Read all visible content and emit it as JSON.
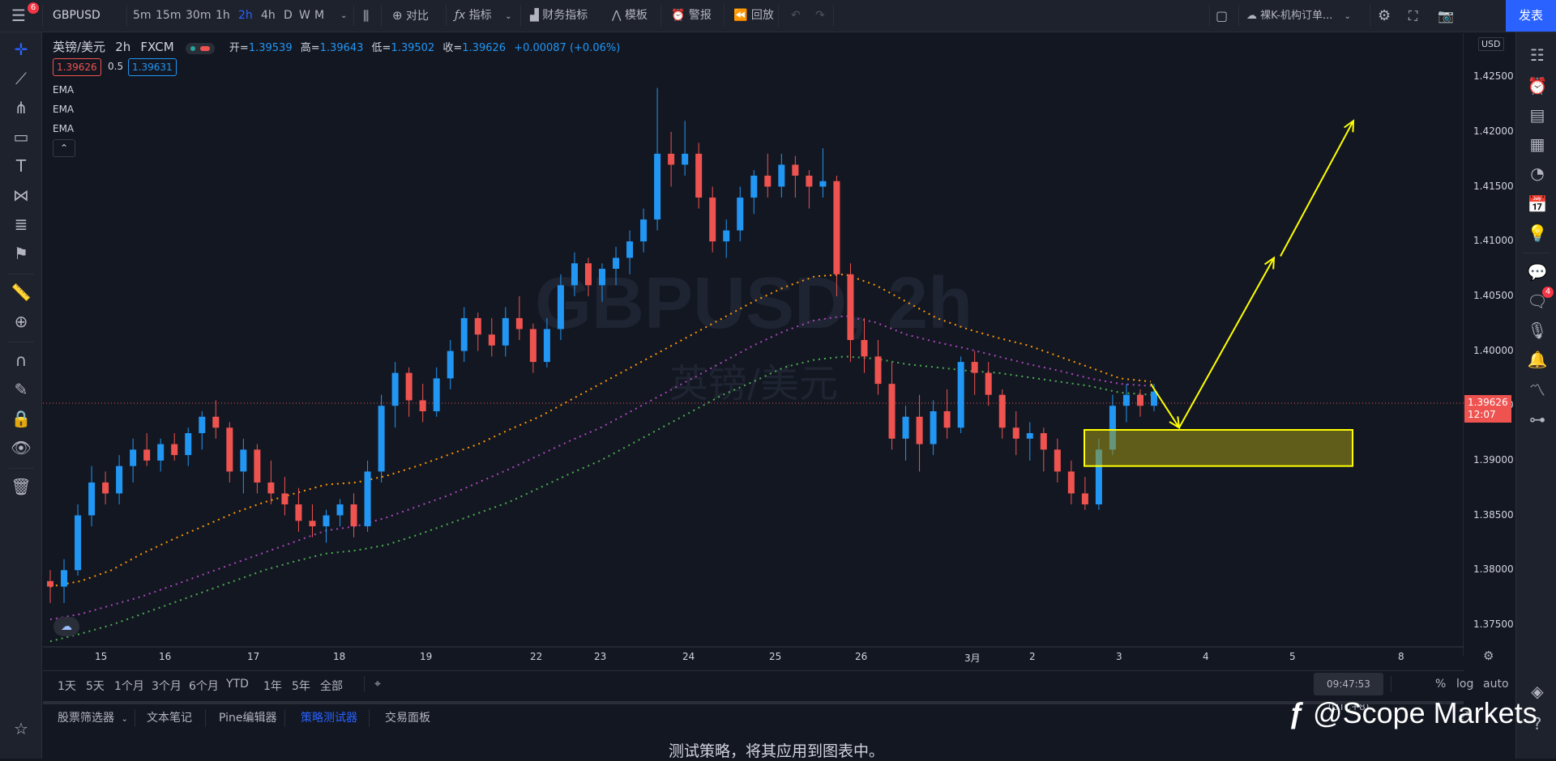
{
  "topbar": {
    "badge": "6",
    "symbol": "GBPUSD",
    "intervals": [
      "5m",
      "15m",
      "30m",
      "1h",
      "2h",
      "4h",
      "D",
      "W",
      "M"
    ],
    "active_interval": "2h",
    "compare": "对比",
    "indicators": "指标",
    "financials": "财务指标",
    "templates": "模板",
    "alert": "警报",
    "replay": "回放",
    "layout_name": "裸K-机构订单...",
    "publish": "发表"
  },
  "legend": {
    "title": "英镑/美元",
    "interval": "2h",
    "source": "FXCM",
    "open_label": "开=",
    "open": "1.39539",
    "high_label": "高=",
    "high": "1.39643",
    "low_label": "低=",
    "low": "1.39502",
    "close_label": "收=",
    "close": "1.39626",
    "change": "+0.00087 (+0.06%)",
    "bid": "1.39626",
    "spread": "0.5",
    "ask": "1.39631",
    "ema_labels": [
      "EMA",
      "EMA",
      "EMA"
    ]
  },
  "watermark": {
    "symbol_line": "GBPUSD, 2h",
    "name_line": "英镑/美元"
  },
  "axis": {
    "currency": "USD",
    "price_ticks": [
      "1.42500",
      "1.42000",
      "1.41500",
      "1.41000",
      "1.40500",
      "1.40000",
      "1.39500",
      "1.39000",
      "1.38500",
      "1.38000",
      "1.37500"
    ],
    "current_price": "1.39626",
    "countdown": "12:07",
    "time_ticks": [
      "15",
      "16",
      "17",
      "18",
      "19",
      "22",
      "23",
      "24",
      "25",
      "26",
      "3月",
      "2",
      "3",
      "4",
      "5",
      "8"
    ]
  },
  "period_bar": {
    "ranges": [
      "1天",
      "5天",
      "1个月",
      "3个月",
      "6个月",
      "YTD",
      "1年",
      "5年",
      "全部"
    ],
    "clock": "09:47:53 (UTC+8)",
    "percent": "%",
    "log": "log",
    "auto": "auto"
  },
  "panel": {
    "tabs": [
      "股票筛选器",
      "文本笔记",
      "Pine编辑器",
      "策略测试器",
      "交易面板"
    ],
    "active_tab": "策略测试器",
    "message": "测试策略，将其应用到图表中。"
  },
  "right_badge": "4",
  "brand": "@Scope Markets",
  "colors": {
    "up": "#2196f3",
    "down": "#ef5350",
    "ema_orange": "#ff9800",
    "ema_purple": "#ab47bc",
    "ema_green": "#4caf50",
    "annotation": "#ffff00"
  },
  "chart_data": {
    "type": "candlestick",
    "ylim": [
      1.373,
      1.429
    ],
    "ohlc": [
      [
        1.379,
        1.38,
        1.377,
        1.3785
      ],
      [
        1.3785,
        1.381,
        1.377,
        1.38
      ],
      [
        1.38,
        1.386,
        1.3795,
        1.385
      ],
      [
        1.385,
        1.3895,
        1.384,
        1.388
      ],
      [
        1.388,
        1.389,
        1.386,
        1.387
      ],
      [
        1.387,
        1.3905,
        1.386,
        1.3895
      ],
      [
        1.3895,
        1.392,
        1.388,
        1.391
      ],
      [
        1.391,
        1.3925,
        1.3895,
        1.39
      ],
      [
        1.39,
        1.392,
        1.389,
        1.3915
      ],
      [
        1.3915,
        1.3925,
        1.39,
        1.3905
      ],
      [
        1.3905,
        1.393,
        1.3895,
        1.3925
      ],
      [
        1.3925,
        1.3945,
        1.391,
        1.394
      ],
      [
        1.394,
        1.3955,
        1.392,
        1.393
      ],
      [
        1.393,
        1.3935,
        1.388,
        1.389
      ],
      [
        1.389,
        1.392,
        1.387,
        1.391
      ],
      [
        1.391,
        1.3915,
        1.387,
        1.388
      ],
      [
        1.388,
        1.39,
        1.386,
        1.387
      ],
      [
        1.387,
        1.3885,
        1.385,
        1.386
      ],
      [
        1.386,
        1.3875,
        1.3835,
        1.3845
      ],
      [
        1.3845,
        1.386,
        1.383,
        1.384
      ],
      [
        1.384,
        1.3855,
        1.3825,
        1.385
      ],
      [
        1.385,
        1.3865,
        1.384,
        1.386
      ],
      [
        1.386,
        1.387,
        1.383,
        1.384
      ],
      [
        1.384,
        1.39,
        1.3835,
        1.389
      ],
      [
        1.389,
        1.396,
        1.388,
        1.395
      ],
      [
        1.395,
        1.399,
        1.393,
        1.398
      ],
      [
        1.398,
        1.3985,
        1.394,
        1.3955
      ],
      [
        1.3955,
        1.397,
        1.3935,
        1.3945
      ],
      [
        1.3945,
        1.3985,
        1.394,
        1.3975
      ],
      [
        1.3975,
        1.401,
        1.3965,
        1.4
      ],
      [
        1.4,
        1.404,
        1.399,
        1.403
      ],
      [
        1.403,
        1.4035,
        1.4,
        1.4015
      ],
      [
        1.4015,
        1.403,
        1.3995,
        1.4005
      ],
      [
        1.4005,
        1.404,
        1.3995,
        1.403
      ],
      [
        1.403,
        1.405,
        1.401,
        1.402
      ],
      [
        1.402,
        1.4025,
        1.398,
        1.399
      ],
      [
        1.399,
        1.403,
        1.3985,
        1.402
      ],
      [
        1.402,
        1.407,
        1.401,
        1.406
      ],
      [
        1.406,
        1.409,
        1.405,
        1.408
      ],
      [
        1.408,
        1.4085,
        1.405,
        1.406
      ],
      [
        1.406,
        1.408,
        1.4045,
        1.4075
      ],
      [
        1.4075,
        1.4095,
        1.406,
        1.4085
      ],
      [
        1.4085,
        1.411,
        1.407,
        1.41
      ],
      [
        1.41,
        1.413,
        1.409,
        1.412
      ],
      [
        1.412,
        1.424,
        1.411,
        1.418
      ],
      [
        1.418,
        1.42,
        1.415,
        1.417
      ],
      [
        1.417,
        1.421,
        1.416,
        1.418
      ],
      [
        1.418,
        1.419,
        1.413,
        1.414
      ],
      [
        1.414,
        1.415,
        1.409,
        1.41
      ],
      [
        1.41,
        1.412,
        1.4085,
        1.411
      ],
      [
        1.411,
        1.415,
        1.41,
        1.414
      ],
      [
        1.414,
        1.4165,
        1.4125,
        1.416
      ],
      [
        1.416,
        1.418,
        1.414,
        1.415
      ],
      [
        1.415,
        1.418,
        1.414,
        1.417
      ],
      [
        1.417,
        1.4178,
        1.414,
        1.416
      ],
      [
        1.416,
        1.4165,
        1.413,
        1.415
      ],
      [
        1.415,
        1.4185,
        1.414,
        1.4155
      ],
      [
        1.4155,
        1.416,
        1.405,
        1.407
      ],
      [
        1.407,
        1.408,
        1.399,
        1.401
      ],
      [
        1.401,
        1.403,
        1.398,
        1.3995
      ],
      [
        1.3995,
        1.401,
        1.396,
        1.397
      ],
      [
        1.397,
        1.399,
        1.391,
        1.392
      ],
      [
        1.392,
        1.395,
        1.39,
        1.394
      ],
      [
        1.394,
        1.396,
        1.389,
        1.3915
      ],
      [
        1.3915,
        1.3955,
        1.3905,
        1.3945
      ],
      [
        1.3945,
        1.3965,
        1.392,
        1.393
      ],
      [
        1.393,
        1.3995,
        1.3925,
        1.399
      ],
      [
        1.399,
        1.4,
        1.396,
        1.398
      ],
      [
        1.398,
        1.399,
        1.395,
        1.396
      ],
      [
        1.396,
        1.3965,
        1.392,
        1.393
      ],
      [
        1.393,
        1.3945,
        1.3905,
        1.392
      ],
      [
        1.392,
        1.3935,
        1.39,
        1.3925
      ],
      [
        1.3925,
        1.393,
        1.389,
        1.391
      ],
      [
        1.391,
        1.392,
        1.388,
        1.389
      ],
      [
        1.389,
        1.39,
        1.386,
        1.387
      ],
      [
        1.387,
        1.3885,
        1.3855,
        1.386
      ],
      [
        1.386,
        1.392,
        1.3855,
        1.391
      ],
      [
        1.391,
        1.396,
        1.3905,
        1.395
      ],
      [
        1.395,
        1.397,
        1.3935,
        1.396
      ],
      [
        1.396,
        1.3965,
        1.394,
        1.395
      ],
      [
        1.395,
        1.397,
        1.3945,
        1.3963
      ]
    ],
    "ema_orange": [
      1.3785,
      1.379,
      1.38,
      1.3815,
      1.3828,
      1.384,
      1.3852,
      1.3862,
      1.387,
      1.3878,
      1.388,
      1.3886,
      1.3895,
      1.3905,
      1.3915,
      1.3928,
      1.394,
      1.3955,
      1.397,
      1.3985,
      1.4,
      1.4015,
      1.403,
      1.4045,
      1.4058,
      1.4068,
      1.407,
      1.406,
      1.4045,
      1.403,
      1.402,
      1.4012,
      1.4005,
      1.3995,
      1.3985,
      1.3975,
      1.3972
    ],
    "ema_purple": [
      1.3755,
      1.376,
      1.3768,
      1.3776,
      1.3786,
      1.3796,
      1.3806,
      1.3816,
      1.3826,
      1.3836,
      1.384,
      1.3848,
      1.3858,
      1.3868,
      1.388,
      1.3892,
      1.3905,
      1.3918,
      1.393,
      1.3945,
      1.396,
      1.3975,
      1.399,
      1.4005,
      1.4018,
      1.4028,
      1.4032,
      1.4026,
      1.4015,
      1.4008,
      1.4002,
      1.3995,
      1.3988,
      1.3982,
      1.3975,
      1.397,
      1.3968
    ],
    "ema_green": [
      1.3735,
      1.3742,
      1.375,
      1.376,
      1.377,
      1.378,
      1.379,
      1.38,
      1.3808,
      1.3815,
      1.3818,
      1.3823,
      1.3832,
      1.3842,
      1.3852,
      1.3862,
      1.3875,
      1.3888,
      1.39,
      1.3915,
      1.393,
      1.3945,
      1.396,
      1.3972,
      1.3985,
      1.3992,
      1.3995,
      1.3993,
      1.3988,
      1.3985,
      1.3982,
      1.398,
      1.3976,
      1.3972,
      1.3968,
      1.3962,
      1.396
    ],
    "zone": [
      1.3928,
      1.3895
    ],
    "arrow_path": [
      1.397,
      1.393,
      1.4085,
      1.421
    ]
  }
}
